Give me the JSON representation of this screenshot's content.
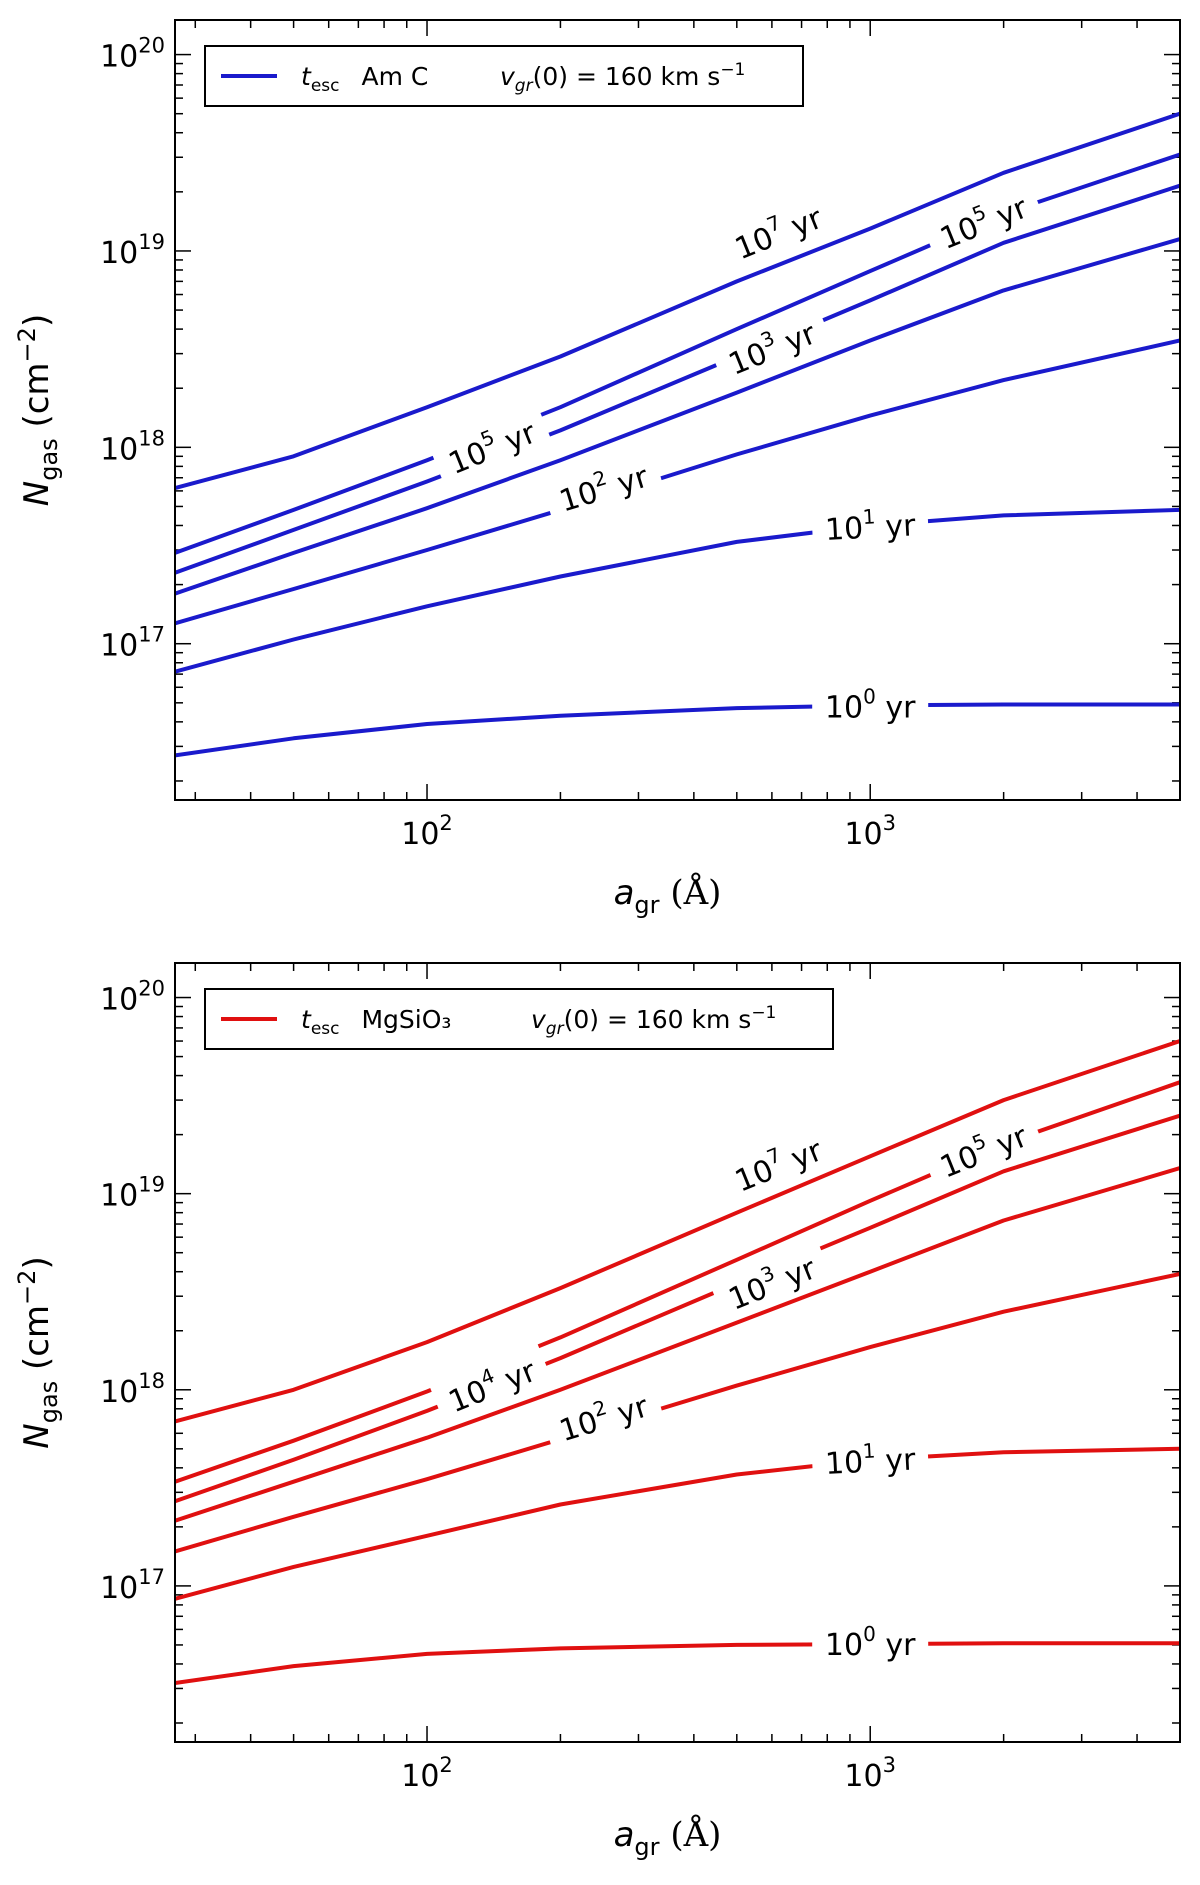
{
  "chart_data": [
    {
      "type": "line",
      "material": "Am C",
      "color": "#1a1acc",
      "xscale": "log",
      "yscale": "log",
      "xlim": [
        27,
        5000
      ],
      "ylim": [
        1.6e+16,
        1.5e+20
      ],
      "xlabel": {
        "main": "a",
        "sub": "gr",
        "unit": " (Å)"
      },
      "ylabel": {
        "main": "N",
        "sub": "gas",
        "unit": " (cm",
        "sup": "−2",
        "close": ")"
      },
      "x_tick_labels": [
        {
          "base": "10",
          "exp": "2",
          "value": 100
        },
        {
          "base": "10",
          "exp": "3",
          "value": 1000
        }
      ],
      "y_tick_labels": [
        {
          "base": "10",
          "exp": "17",
          "value": 1e+17
        },
        {
          "base": "10",
          "exp": "18",
          "value": 1e+18
        },
        {
          "base": "10",
          "exp": "19",
          "value": 1e+19
        },
        {
          "base": "10",
          "exp": "20",
          "value": 1e+20
        }
      ],
      "legend": {
        "position": "upper-left",
        "symbol": "t",
        "symbol_sub": "esc",
        "label": "Am C",
        "velocity": {
          "symbol": "v",
          "sub": "gr",
          "arg": "(0)",
          "value": " = 160 km s",
          "sup": "−1"
        }
      },
      "series": [
        {
          "name": "10^7 yr",
          "x": [
            27,
            50,
            100,
            200,
            500,
            1000,
            2000,
            5000
          ],
          "values": [
            6.2e+17,
            9e+17,
            1.6e+18,
            2.9e+18,
            7e+18,
            1.3e+19,
            2.5e+19,
            5e+19
          ]
        },
        {
          "name": "10^5 yr (upper)",
          "x": [
            27,
            50,
            100,
            200,
            500,
            1000,
            2000,
            5000
          ],
          "values": [
            2.9e+17,
            4.8e+17,
            8.6e+17,
            1.6e+18,
            4e+18,
            7.9e+18,
            1.55e+19,
            3.1e+19
          ]
        },
        {
          "name": "10^5 yr",
          "x": [
            27,
            50,
            100,
            200,
            500,
            1000,
            2000,
            5000
          ],
          "values": [
            2.3e+17,
            3.8e+17,
            6.7e+17,
            1.22e+18,
            2.9e+18,
            5.6e+18,
            1.1e+19,
            2.15e+19
          ]
        },
        {
          "name": "10^3 yr",
          "x": [
            27,
            50,
            100,
            200,
            500,
            1000,
            2000,
            5000
          ],
          "values": [
            1.8e+17,
            2.9e+17,
            4.9e+17,
            8.6e+17,
            1.9e+18,
            3.5e+18,
            6.3e+18,
            1.15e+19
          ]
        },
        {
          "name": "10^2 yr",
          "x": [
            27,
            50,
            100,
            200,
            500,
            1000,
            2000,
            5000
          ],
          "values": [
            1.27e+17,
            1.9e+17,
            3e+17,
            4.8e+17,
            9.2e+17,
            1.45e+18,
            2.2e+18,
            3.5e+18
          ]
        },
        {
          "name": "10^1 yr",
          "x": [
            27,
            50,
            100,
            200,
            500,
            1000,
            2000,
            5000
          ],
          "values": [
            7.2e+16,
            1.05e+17,
            1.55e+17,
            2.2e+17,
            3.3e+17,
            4e+17,
            4.5e+17,
            4.8e+17
          ]
        },
        {
          "name": "10^0 yr",
          "x": [
            27,
            50,
            100,
            200,
            500,
            1000,
            2000,
            5000
          ],
          "values": [
            2.7e+16,
            3.3e+16,
            3.9e+16,
            4.3e+16,
            4.7e+16,
            4.85e+16,
            4.9e+16,
            4.9e+16
          ]
        }
      ],
      "contour_labels": [
        {
          "base": "10",
          "exp": "7",
          "unit": " yr",
          "x": 620,
          "y": 1.24e+19,
          "angle": -22
        },
        {
          "base": "10",
          "exp": "5",
          "unit": " yr",
          "x": 1800,
          "y": 1.4e+19,
          "angle": -22
        },
        {
          "base": "10",
          "exp": "5",
          "unit": " yr",
          "x": 140,
          "y": 1e+18,
          "angle": -22
        },
        {
          "base": "10",
          "exp": "3",
          "unit": " yr",
          "x": 600,
          "y": 3.2e+18,
          "angle": -22
        },
        {
          "base": "10",
          "exp": "2",
          "unit": " yr",
          "x": 250,
          "y": 6.2e+17,
          "angle": -17
        },
        {
          "base": "10",
          "exp": "1",
          "unit": " yr",
          "x": 1000,
          "y": 3.95e+17,
          "angle": -3
        },
        {
          "base": "10",
          "exp": "0",
          "unit": " yr",
          "x": 1000,
          "y": 4.8e+16,
          "angle": 0
        }
      ]
    },
    {
      "type": "line",
      "material": "MgSiO₃",
      "color": "#e01010",
      "xscale": "log",
      "yscale": "log",
      "xlim": [
        27,
        5000
      ],
      "ylim": [
        1.6e+16,
        1.5e+20
      ],
      "xlabel": {
        "main": "a",
        "sub": "gr",
        "unit": " (Å)"
      },
      "ylabel": {
        "main": "N",
        "sub": "gas",
        "unit": " (cm",
        "sup": "−2",
        "close": ")"
      },
      "x_tick_labels": [
        {
          "base": "10",
          "exp": "2",
          "value": 100
        },
        {
          "base": "10",
          "exp": "3",
          "value": 1000
        }
      ],
      "y_tick_labels": [
        {
          "base": "10",
          "exp": "17",
          "value": 1e+17
        },
        {
          "base": "10",
          "exp": "18",
          "value": 1e+18
        },
        {
          "base": "10",
          "exp": "19",
          "value": 1e+19
        },
        {
          "base": "10",
          "exp": "20",
          "value": 1e+20
        }
      ],
      "legend": {
        "position": "upper-left",
        "symbol": "t",
        "symbol_sub": "esc",
        "label": "MgSiO₃",
        "velocity": {
          "symbol": "v",
          "sub": "gr",
          "arg": "(0)",
          "value": " = 160 km s",
          "sup": "−1"
        }
      },
      "series": [
        {
          "name": "10^7 yr",
          "x": [
            27,
            50,
            100,
            200,
            500,
            1000,
            2000,
            5000
          ],
          "values": [
            6.9e+17,
            1e+18,
            1.75e+18,
            3.3e+18,
            8e+18,
            1.55e+19,
            3e+19,
            6e+19
          ]
        },
        {
          "name": "10^5 yr",
          "x": [
            27,
            50,
            100,
            200,
            500,
            1000,
            2000,
            5000
          ],
          "values": [
            3.4e+17,
            5.5e+17,
            9.8e+17,
            1.85e+18,
            4.6e+18,
            9.2e+18,
            1.8e+19,
            3.7e+19
          ]
        },
        {
          "name": "10^4 yr",
          "x": [
            27,
            50,
            100,
            200,
            500,
            1000,
            2000,
            5000
          ],
          "values": [
            2.7e+17,
            4.4e+17,
            7.8e+17,
            1.45e+18,
            3.5e+18,
            6.7e+18,
            1.3e+19,
            2.5e+19
          ]
        },
        {
          "name": "10^3 yr",
          "x": [
            27,
            50,
            100,
            200,
            500,
            1000,
            2000,
            5000
          ],
          "values": [
            2.15e+17,
            3.4e+17,
            5.7e+17,
            1e+18,
            2.2e+18,
            4e+18,
            7.3e+18,
            1.35e+19
          ]
        },
        {
          "name": "10^2 yr",
          "x": [
            27,
            50,
            100,
            200,
            500,
            1000,
            2000,
            5000
          ],
          "values": [
            1.5e+17,
            2.25e+17,
            3.5e+17,
            5.6e+17,
            1.05e+18,
            1.65e+18,
            2.5e+18,
            3.9e+18
          ]
        },
        {
          "name": "10^1 yr",
          "x": [
            27,
            50,
            100,
            200,
            500,
            1000,
            2000,
            5000
          ],
          "values": [
            8.6e+16,
            1.25e+17,
            1.8e+17,
            2.6e+17,
            3.7e+17,
            4.4e+17,
            4.8e+17,
            5e+17
          ]
        },
        {
          "name": "10^0 yr",
          "x": [
            27,
            50,
            100,
            200,
            500,
            1000,
            2000,
            5000
          ],
          "values": [
            3.2e+16,
            3.9e+16,
            4.5e+16,
            4.8e+16,
            5e+16,
            5.05e+16,
            5.1e+16,
            5.1e+16
          ]
        }
      ],
      "contour_labels": [
        {
          "base": "10",
          "exp": "7",
          "unit": " yr",
          "x": 620,
          "y": 1.4e+19,
          "angle": -22
        },
        {
          "base": "10",
          "exp": "5",
          "unit": " yr",
          "x": 1800,
          "y": 1.65e+19,
          "angle": -22
        },
        {
          "base": "10",
          "exp": "4",
          "unit": " yr",
          "x": 140,
          "y": 1.05e+18,
          "angle": -22
        },
        {
          "base": "10",
          "exp": "3",
          "unit": " yr",
          "x": 600,
          "y": 3.5e+18,
          "angle": -22
        },
        {
          "base": "10",
          "exp": "2",
          "unit": " yr",
          "x": 250,
          "y": 7.2e+17,
          "angle": -17
        },
        {
          "base": "10",
          "exp": "1",
          "unit": " yr",
          "x": 1000,
          "y": 4.35e+17,
          "angle": -3
        },
        {
          "base": "10",
          "exp": "0",
          "unit": " yr",
          "x": 1000,
          "y": 5.05e+16,
          "angle": 0
        }
      ]
    }
  ]
}
